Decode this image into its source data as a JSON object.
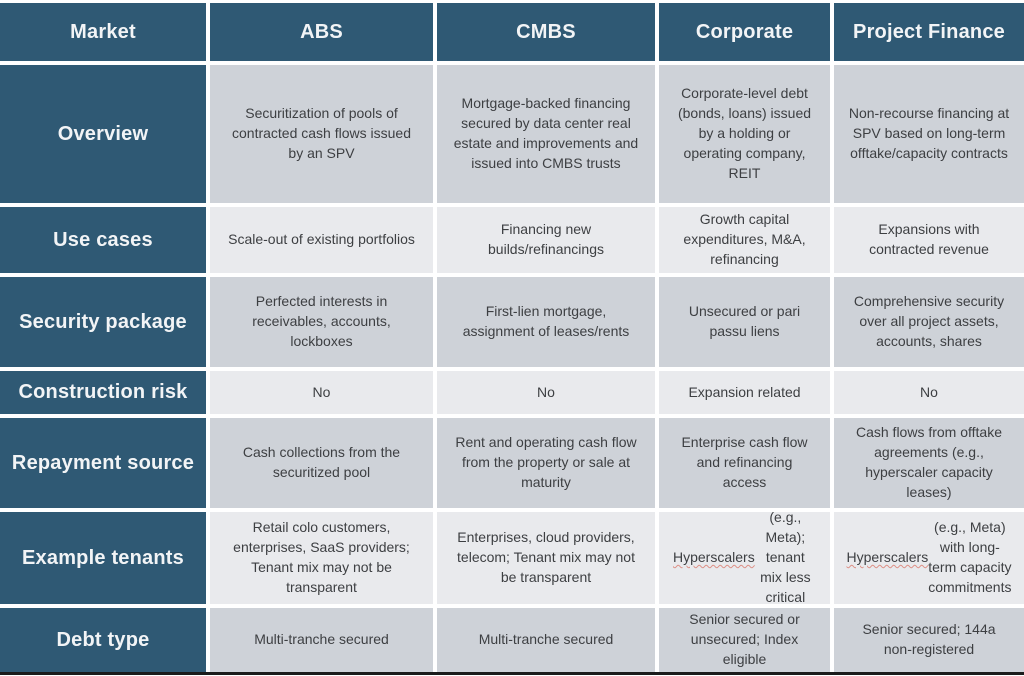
{
  "colors": {
    "header_bg": "#2f5974",
    "row_dark_bg": "#ced2d8",
    "row_light_bg": "#e9eaed",
    "header_text": "#f2f4f6",
    "body_text": "#3d3f42",
    "spellcheck_underline": "#dd8f85"
  },
  "spellcheck_underline_word": "Hyperscalers",
  "table": {
    "header": {
      "market_label": "Market",
      "columns": [
        "ABS",
        "CMBS",
        "Corporate",
        "Project Finance"
      ]
    },
    "rows": [
      {
        "label": "Overview",
        "cells": [
          "Securitization of pools of contracted cash flows issued by an SPV",
          "Mortgage-backed financing secured by data center real estate and improvements and issued into CMBS trusts",
          "Corporate-level debt (bonds, loans) issued by a holding or operating company, REIT",
          "Non-recourse financing at SPV based on long-term offtake/capacity contracts"
        ]
      },
      {
        "label": "Use cases",
        "cells": [
          "Scale-out of existing portfolios",
          "Financing new builds/refinancings",
          "Growth capital expenditures, M&A, refinancing",
          "Expansions with contracted revenue"
        ]
      },
      {
        "label": "Security package",
        "cells": [
          "Perfected interests in receivables, accounts, lockboxes",
          "First-lien mortgage, assignment of leases/rents",
          "Unsecured or pari passu liens",
          "Comprehensive security over all project assets, accounts, shares"
        ]
      },
      {
        "label": "Construction risk",
        "cells": [
          "No",
          "No",
          "Expansion related",
          "No"
        ]
      },
      {
        "label": "Repayment source",
        "cells": [
          "Cash collections from the securitized pool",
          "Rent and operating cash flow from the property or sale at maturity",
          "Enterprise cash flow and refinancing access",
          "Cash flows from offtake agreements (e.g., hyperscaler capacity leases)"
        ]
      },
      {
        "label": "Example tenants",
        "cells": [
          "Retail colo customers, enterprises, SaaS providers; Tenant mix may not be transparent",
          "Enterprises, cloud providers, telecom; Tenant mix may not be transparent",
          "Hyperscalers (e.g., Meta); tenant mix less critical",
          "Hyperscalers (e.g., Meta) with long-term capacity commitments"
        ]
      },
      {
        "label": "Debt type",
        "cells": [
          "Multi-tranche secured",
          "Multi-tranche secured",
          "Senior secured or unsecured; Index eligible",
          "Senior secured; 144a non-registered"
        ]
      }
    ]
  }
}
